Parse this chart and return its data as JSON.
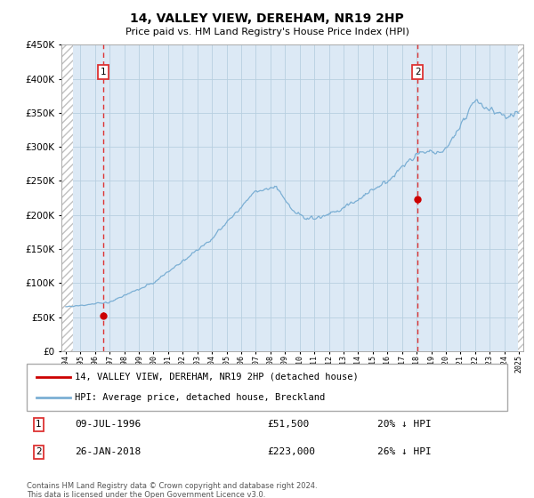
{
  "title": "14, VALLEY VIEW, DEREHAM, NR19 2HP",
  "subtitle": "Price paid vs. HM Land Registry's House Price Index (HPI)",
  "sale1_price": 51500,
  "sale1_year": 1996.54,
  "sale1_label": "09-JUL-1996",
  "sale1_price_str": "£51,500",
  "sale1_hpi_diff": "20% ↓ HPI",
  "sale2_price": 223000,
  "sale2_year": 2018.07,
  "sale2_label": "26-JAN-2018",
  "sale2_price_str": "£223,000",
  "sale2_hpi_diff": "26% ↓ HPI",
  "legend_red": "14, VALLEY VIEW, DEREHAM, NR19 2HP (detached house)",
  "legend_blue": "HPI: Average price, detached house, Breckland",
  "footnote1": "Contains HM Land Registry data © Crown copyright and database right 2024.",
  "footnote2": "This data is licensed under the Open Government Licence v3.0.",
  "ylim_max": 450000,
  "xlim_min": 1994,
  "xlim_max": 2025,
  "red_color": "#cc0000",
  "blue_color": "#7bafd4",
  "dashed_color": "#dd3333",
  "bg_plot": "#dce9f5",
  "grid_color": "#b8cfe0",
  "hatch_color": "#c0c0c0",
  "box_color": "#dd3333"
}
